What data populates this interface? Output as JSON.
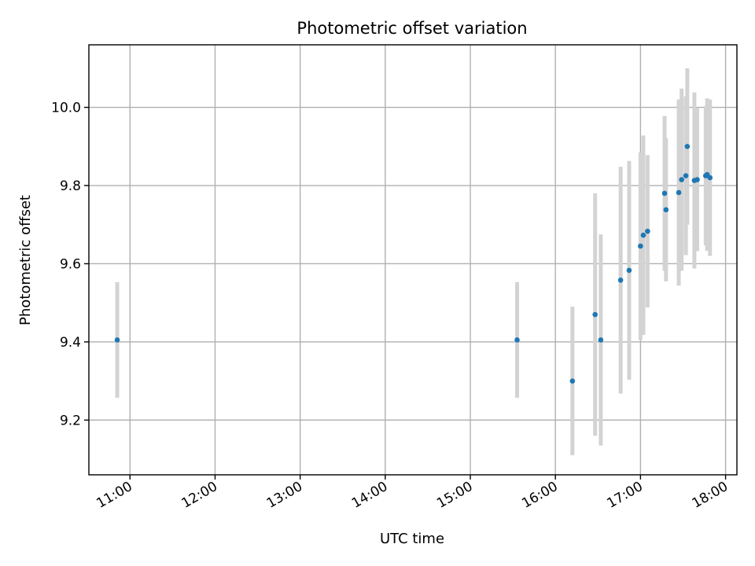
{
  "chart_data": {
    "type": "scatter",
    "title": "Photometric offset variation",
    "xlabel": "UTC time",
    "ylabel": "Photometric offset",
    "grid": true,
    "legend": "none",
    "xlim": [
      "10:31",
      "18:08"
    ],
    "ylim": [
      9.06,
      10.16
    ],
    "x_tick_labels": [
      "11:00",
      "12:00",
      "13:00",
      "14:00",
      "15:00",
      "16:00",
      "17:00",
      "18:00"
    ],
    "y_tick_labels": [
      "9.2",
      "9.4",
      "9.6",
      "9.8",
      "10.0"
    ],
    "y_ticks": [
      9.2,
      9.4,
      9.6,
      9.8,
      10.0
    ],
    "series": [
      {
        "marker_color": "#1f77b4",
        "errorbar_color": "#d3d3d3",
        "points": [
          {
            "time": "10:51",
            "y": 9.405,
            "err": 0.148
          },
          {
            "time": "15:33",
            "y": 9.405,
            "err": 0.148
          },
          {
            "time": "16:12",
            "y": 9.3,
            "err": 0.19
          },
          {
            "time": "16:28",
            "y": 9.47,
            "err": 0.31
          },
          {
            "time": "16:32",
            "y": 9.405,
            "err": 0.27
          },
          {
            "time": "16:46",
            "y": 9.558,
            "err": 0.29
          },
          {
            "time": "16:52",
            "y": 9.583,
            "err": 0.28
          },
          {
            "time": "17:00",
            "y": 9.645,
            "err": 0.24
          },
          {
            "time": "17:02",
            "y": 9.673,
            "err": 0.255
          },
          {
            "time": "17:05",
            "y": 9.683,
            "err": 0.195
          },
          {
            "time": "17:17",
            "y": 9.78,
            "err": 0.198
          },
          {
            "time": "17:18",
            "y": 9.738,
            "err": 0.183
          },
          {
            "time": "17:27",
            "y": 9.782,
            "err": 0.238
          },
          {
            "time": "17:29",
            "y": 9.815,
            "err": 0.233
          },
          {
            "time": "17:32",
            "y": 9.825,
            "err": 0.203
          },
          {
            "time": "17:33",
            "y": 9.9,
            "err": 0.2
          },
          {
            "time": "17:38",
            "y": 9.813,
            "err": 0.225
          },
          {
            "time": "17:40",
            "y": 9.815,
            "err": 0.183
          },
          {
            "time": "17:46",
            "y": 9.825,
            "err": 0.178
          },
          {
            "time": "17:47",
            "y": 9.828,
            "err": 0.195
          },
          {
            "time": "17:49",
            "y": 9.82,
            "err": 0.2
          }
        ]
      }
    ]
  }
}
